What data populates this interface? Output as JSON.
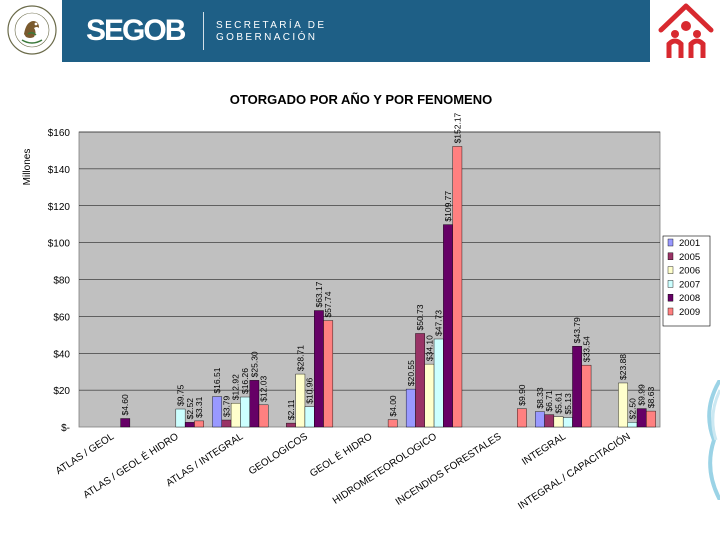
{
  "header": {
    "logo": "SEGOB",
    "secretaria_line1": "SECRETARÍA DE",
    "secretaria_line2": "GOBERNACIÓN",
    "seal_text": "ESTADOS UNIDOS MEXICANOS"
  },
  "chart_data": {
    "type": "bar",
    "title": "OTORGADO POR AÑO Y POR FENOMENO",
    "ylabel": "Millones",
    "xlabel": "",
    "ylim": [
      0,
      160
    ],
    "yticks": [
      "$-",
      "$20",
      "$40",
      "$60",
      "$80",
      "$100",
      "$120",
      "$140",
      "$160"
    ],
    "categories": [
      "ATLAS / GEOL",
      "ATLAS / GEOL É HIDRO",
      "ATLAS / INTEGRAL",
      "GEOLOGICOS",
      "GEOL É HIDRO",
      "HIDROMETEOROLOGICO",
      "INCENDIOS FORESTALES",
      "INTEGRAL",
      "INTEGRAL / CAPACITACIÓN"
    ],
    "series": [
      {
        "name": "2001",
        "color": "#9999ff",
        "values": [
          null,
          null,
          16.51,
          null,
          null,
          20.55,
          null,
          8.33,
          null
        ]
      },
      {
        "name": "2005",
        "color": "#993366",
        "values": [
          null,
          null,
          3.79,
          2.11,
          null,
          50.73,
          null,
          6.71,
          null
        ]
      },
      {
        "name": "2006",
        "color": "#ffffcc",
        "values": [
          null,
          null,
          12.92,
          28.71,
          null,
          34.1,
          null,
          5.61,
          23.88
        ]
      },
      {
        "name": "2007",
        "color": "#ccffff",
        "values": [
          null,
          9.75,
          16.26,
          10.96,
          null,
          47.73,
          null,
          5.13,
          2.5
        ]
      },
      {
        "name": "2008",
        "color": "#660066",
        "values": [
          4.6,
          2.52,
          25.3,
          63.17,
          null,
          109.77,
          null,
          43.79,
          9.99
        ]
      },
      {
        "name": "2009",
        "color": "#ff8080",
        "values": [
          null,
          3.31,
          12.03,
          57.74,
          4.0,
          152.17,
          9.9,
          33.54,
          8.63
        ]
      }
    ],
    "data_labels": [
      {
        "cat": 0,
        "series": 4,
        "text": "$4.60"
      },
      {
        "cat": 1,
        "series": 3,
        "text": "$9.75"
      },
      {
        "cat": 1,
        "series": 4,
        "text": "$2.52"
      },
      {
        "cat": 1,
        "series": 5,
        "text": "$3.31"
      },
      {
        "cat": 2,
        "series": 0,
        "text": "$16.51"
      },
      {
        "cat": 2,
        "series": 1,
        "text": "$3.79"
      },
      {
        "cat": 2,
        "series": 2,
        "text": "$12.92"
      },
      {
        "cat": 2,
        "series": 3,
        "text": "$16.26"
      },
      {
        "cat": 2,
        "series": 4,
        "text": "$25.30"
      },
      {
        "cat": 2,
        "series": 5,
        "text": "$12.03"
      },
      {
        "cat": 3,
        "series": 1,
        "text": "$2.11"
      },
      {
        "cat": 3,
        "series": 2,
        "text": "$28.71"
      },
      {
        "cat": 3,
        "series": 3,
        "text": "$10.96"
      },
      {
        "cat": 3,
        "series": 4,
        "text": "$63.17"
      },
      {
        "cat": 3,
        "series": 5,
        "text": "$57.74"
      },
      {
        "cat": 4,
        "series": 5,
        "text": "$4.00"
      },
      {
        "cat": 5,
        "series": 0,
        "text": "$20.55"
      },
      {
        "cat": 5,
        "series": 1,
        "text": "$50.73"
      },
      {
        "cat": 5,
        "series": 2,
        "text": "$34.10"
      },
      {
        "cat": 5,
        "series": 3,
        "text": "$47.73"
      },
      {
        "cat": 5,
        "series": 4,
        "text": "$109.77"
      },
      {
        "cat": 5,
        "series": 5,
        "text": "$152.17"
      },
      {
        "cat": 6,
        "series": 5,
        "text": "$9.90"
      },
      {
        "cat": 7,
        "series": 0,
        "text": "$8.33"
      },
      {
        "cat": 7,
        "series": 1,
        "text": "$6.71"
      },
      {
        "cat": 7,
        "series": 2,
        "text": "$5.61"
      },
      {
        "cat": 7,
        "series": 3,
        "text": "$5.13"
      },
      {
        "cat": 7,
        "series": 4,
        "text": "$43.79"
      },
      {
        "cat": 7,
        "series": 5,
        "text": "$33.54"
      },
      {
        "cat": 8,
        "series": 2,
        "text": "$23.88"
      },
      {
        "cat": 8,
        "series": 3,
        "text": "$2.50"
      },
      {
        "cat": 8,
        "series": 4,
        "text": "$9.99"
      },
      {
        "cat": 8,
        "series": 5,
        "text": "$8.63"
      }
    ],
    "legend_position": "right"
  }
}
